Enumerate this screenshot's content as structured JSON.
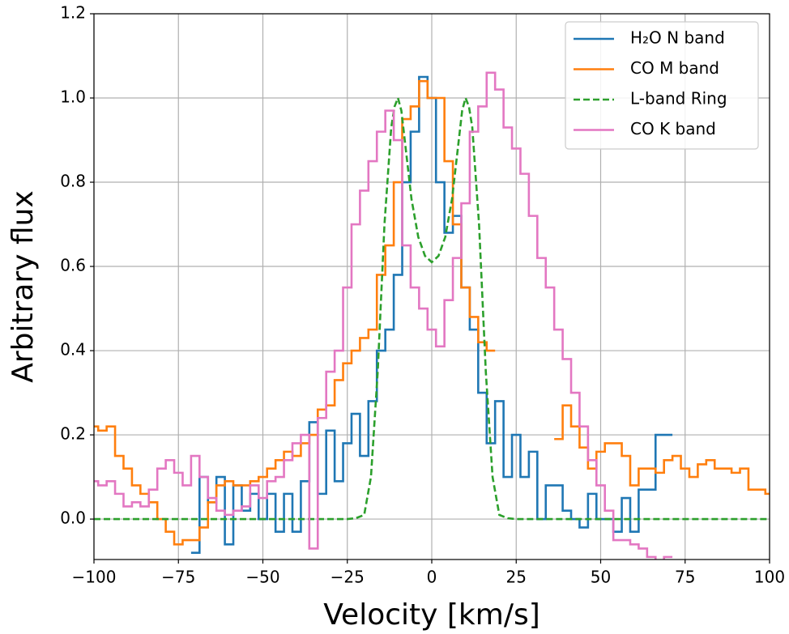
{
  "chart_data": {
    "type": "line",
    "drawstyle": "steps-mid",
    "xlabel": "Velocity [km/s]",
    "ylabel": "Arbitrary flux",
    "xlim": [
      -100,
      100
    ],
    "ylim": [
      -0.096,
      1.2
    ],
    "xticks": [
      {
        "value": -100,
        "label": "−100"
      },
      {
        "value": -75,
        "label": "−75"
      },
      {
        "value": -50,
        "label": "−50"
      },
      {
        "value": -25,
        "label": "−25"
      },
      0,
      25,
      50,
      75,
      100
    ],
    "yticks": [
      {
        "value": 0,
        "label": "0.0"
      },
      0.2,
      0.4,
      0.6,
      0.8,
      {
        "value": 1,
        "label": "1.0"
      },
      {
        "value": 1.2,
        "label": "1.2"
      }
    ],
    "grid": true,
    "legend": "upper right",
    "x": [
      -100,
      -97.5,
      -95,
      -92.5,
      -90,
      -87.5,
      -85,
      -82.5,
      -80,
      -77.5,
      -75,
      -72.5,
      -70,
      -67.5,
      -65,
      -62.5,
      -60,
      -57.5,
      -55,
      -52.5,
      -50,
      -47.5,
      -45,
      -42.5,
      -40,
      -37.5,
      -35,
      -32.5,
      -30,
      -27.5,
      -25,
      -22.5,
      -20,
      -17.5,
      -15,
      -12.5,
      -10,
      -7.5,
      -5,
      -2.5,
      0,
      2.5,
      5,
      7.5,
      10,
      12.5,
      15,
      17.5,
      20,
      22.5,
      25,
      27.5,
      30,
      32.5,
      35,
      37.5,
      40,
      42.5,
      45,
      47.5,
      50,
      52.5,
      55,
      57.5,
      60,
      62.5,
      65,
      67.5,
      70,
      72.5,
      75,
      77.5,
      80,
      82.5,
      85,
      87.5,
      90,
      92.5,
      95,
      97.5,
      100
    ],
    "series": [
      {
        "name": "H₂O N band",
        "color": "#1f77b4",
        "dash": false,
        "values": [
          null,
          null,
          null,
          null,
          null,
          null,
          null,
          null,
          null,
          null,
          null,
          null,
          -0.08,
          0.1,
          0.04,
          0.1,
          -0.06,
          0.08,
          0.02,
          0.06,
          0.0,
          0.06,
          -0.03,
          0.06,
          -0.03,
          0.09,
          0.23,
          0.06,
          0.21,
          0.09,
          0.18,
          0.25,
          0.15,
          0.28,
          0.4,
          0.45,
          0.58,
          0.8,
          0.92,
          1.05,
          1.0,
          0.8,
          0.68,
          0.72,
          0.55,
          0.45,
          0.3,
          0.18,
          0.28,
          0.1,
          0.2,
          0.1,
          0.16,
          0.0,
          0.08,
          0.08,
          0.02,
          0.0,
          -0.02,
          0.06,
          0.0,
          0.0,
          -0.03,
          0.05,
          -0.03,
          0.07,
          0.07,
          0.2,
          0.2,
          null,
          null,
          null,
          null,
          null,
          null,
          null,
          null,
          null,
          null,
          null,
          null
        ]
      },
      {
        "name": "CO M band",
        "color": "#ff7f0e",
        "dash": false,
        "values": [
          0.22,
          0.21,
          0.22,
          0.15,
          0.12,
          0.08,
          0.06,
          0.04,
          0.0,
          -0.03,
          -0.06,
          -0.05,
          -0.05,
          -0.02,
          0.04,
          0.08,
          0.09,
          0.08,
          0.08,
          0.09,
          0.1,
          0.12,
          0.14,
          0.16,
          0.15,
          0.18,
          0.2,
          0.26,
          0.27,
          0.33,
          0.37,
          0.4,
          0.43,
          0.45,
          0.58,
          0.65,
          0.8,
          0.95,
          0.98,
          1.04,
          1.0,
          1.0,
          0.85,
          0.7,
          0.55,
          0.48,
          0.42,
          0.4,
          null,
          null,
          null,
          null,
          null,
          null,
          null,
          0.19,
          0.27,
          0.22,
          0.17,
          0.12,
          0.16,
          0.18,
          0.18,
          0.15,
          0.08,
          0.12,
          0.12,
          0.11,
          0.14,
          0.15,
          0.12,
          0.1,
          0.13,
          0.14,
          0.12,
          0.12,
          0.11,
          0.12,
          0.07,
          0.07,
          0.06
        ]
      },
      {
        "name": "L-band Ring",
        "color": "#2ca02c",
        "dash": true,
        "drawstyle": "default",
        "x": [
          -100,
          -25,
          -22.5,
          -20,
          -18,
          -16,
          -14,
          -12,
          -11,
          -10,
          -9,
          -8,
          -6,
          -4,
          -2,
          0,
          2,
          4,
          6,
          8,
          9,
          10,
          11,
          12,
          14,
          16,
          18,
          20,
          22.5,
          25,
          100
        ],
        "values": [
          0,
          0,
          0.002,
          0.01,
          0.1,
          0.35,
          0.7,
          0.93,
          0.98,
          1.0,
          0.97,
          0.9,
          0.76,
          0.67,
          0.625,
          0.61,
          0.625,
          0.67,
          0.76,
          0.9,
          0.97,
          1.0,
          0.98,
          0.93,
          0.7,
          0.35,
          0.1,
          0.01,
          0.002,
          0,
          0
        ]
      },
      {
        "name": "CO K band",
        "color": "#e377c2",
        "dash": false,
        "values": [
          0.09,
          0.08,
          0.09,
          0.06,
          0.03,
          0.04,
          0.03,
          0.07,
          0.12,
          0.14,
          0.11,
          0.08,
          0.15,
          0.1,
          0.05,
          0.02,
          0.01,
          0.02,
          0.03,
          0.08,
          0.05,
          0.09,
          0.1,
          0.14,
          0.18,
          0.2,
          -0.07,
          0.24,
          0.35,
          0.4,
          0.55,
          0.7,
          0.78,
          0.85,
          0.92,
          0.97,
          0.9,
          0.65,
          0.55,
          0.5,
          0.45,
          0.41,
          0.52,
          0.62,
          0.75,
          0.92,
          0.98,
          1.06,
          1.02,
          0.93,
          0.88,
          0.82,
          0.72,
          0.62,
          0.55,
          0.45,
          0.38,
          0.3,
          0.22,
          0.14,
          0.08,
          0.02,
          -0.05,
          -0.05,
          -0.06,
          -0.07,
          -0.09,
          -0.11,
          -0.09,
          null,
          null,
          null,
          null,
          null,
          null,
          null,
          null,
          null,
          null,
          null,
          null
        ]
      }
    ]
  }
}
